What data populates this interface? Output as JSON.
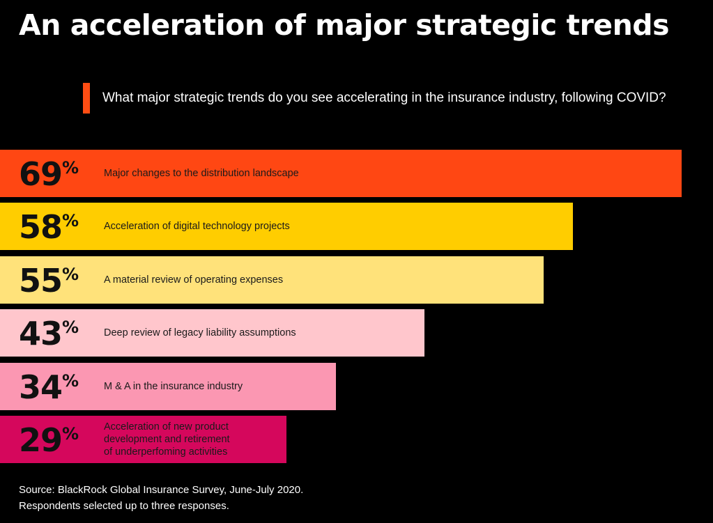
{
  "title": "An acceleration of major strategic trends",
  "question": "What major strategic trends do you see accelerating in the insurance industry, following COVID?",
  "colors": {
    "background": "#000000",
    "marker": "#ff4d13"
  },
  "chart_data": {
    "type": "bar",
    "orientation": "horizontal",
    "unit": "%",
    "categories": [
      "Major changes to the distribution landscape",
      "Acceleration of digital technology projects",
      "A material review of operating expenses",
      "Deep review of legacy liability assumptions",
      "M & A in the insurance industry",
      "Acceleration of new product\ndevelopment and retirement\nof underperfoming activities"
    ],
    "values": [
      69,
      58,
      55,
      43,
      34,
      29
    ],
    "colors": [
      "#ff4713",
      "#ffcd00",
      "#ffe27a",
      "#ffc6cc",
      "#fb97b2",
      "#d5075c"
    ],
    "xlim": [
      0,
      100
    ],
    "grid": false,
    "legend": "none"
  },
  "source": {
    "line1": "Source: BlackRock Global Insurance Survey, June-July 2020.",
    "line2": "Respondents selected up to three responses."
  }
}
